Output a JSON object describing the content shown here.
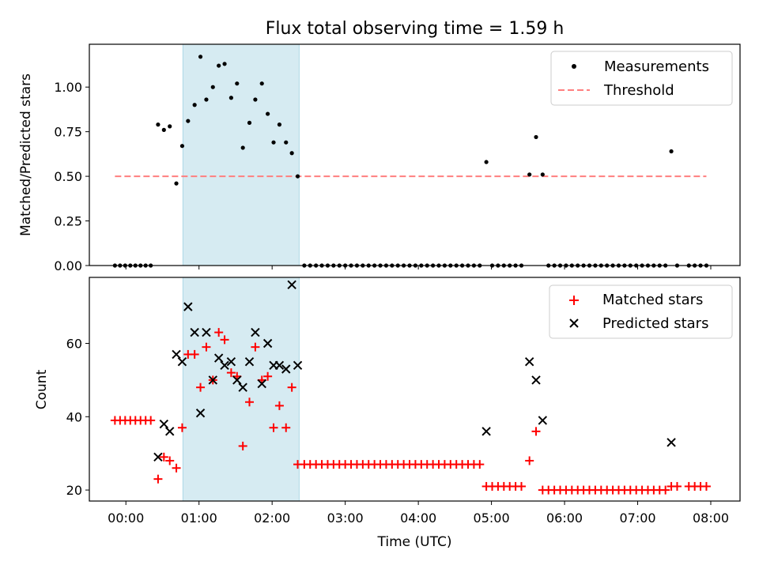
{
  "chart_data": [
    {
      "type": "scatter",
      "panel": "top",
      "title": "Flux total observing time = 1.59 h",
      "xlabel": "",
      "ylabel": "Matched/Predicted stars",
      "xlim": [
        -0.5,
        8.4
      ],
      "ylim": [
        0,
        1.24
      ],
      "yticks": [
        0.0,
        0.25,
        0.5,
        0.75,
        1.0
      ],
      "ytick_labels": [
        "0.00",
        "0.25",
        "0.50",
        "0.75",
        "1.00"
      ],
      "highlight_span": [
        0.78,
        2.37
      ],
      "legend": {
        "position": "top-right",
        "entries": [
          "Measurements",
          "Threshold"
        ]
      },
      "series": [
        {
          "name": "Measurements",
          "marker": "dot",
          "color": "#000000",
          "x": [
            -0.15,
            -0.08,
            -0.01,
            0.06,
            0.13,
            0.2,
            0.27,
            0.34,
            0.44,
            0.52,
            0.6,
            0.69,
            0.77,
            0.85,
            0.94,
            1.02,
            1.1,
            1.19,
            1.27,
            1.35,
            1.44,
            1.52,
            1.6,
            1.69,
            1.77,
            1.86,
            1.94,
            2.02,
            2.1,
            2.19,
            2.27,
            2.35,
            2.44,
            2.52,
            2.6,
            2.68,
            2.76,
            2.84,
            2.92,
            3.0,
            3.08,
            3.16,
            3.24,
            3.32,
            3.4,
            3.48,
            3.56,
            3.64,
            3.72,
            3.8,
            3.88,
            3.96,
            4.04,
            4.12,
            4.2,
            4.28,
            4.36,
            4.44,
            4.52,
            4.6,
            4.68,
            4.76,
            4.84,
            4.93,
            5.01,
            5.09,
            5.17,
            5.25,
            5.33,
            5.41,
            5.52,
            5.61,
            5.7,
            5.78,
            5.86,
            5.94,
            6.02,
            6.1,
            6.18,
            6.26,
            6.34,
            6.42,
            6.5,
            6.58,
            6.66,
            6.74,
            6.82,
            6.9,
            6.98,
            7.06,
            7.14,
            7.22,
            7.3,
            7.38,
            7.46,
            7.54,
            7.7,
            7.78,
            7.86,
            7.94
          ],
          "y": [
            0,
            0,
            0,
            0,
            0,
            0,
            0,
            0,
            0.79,
            0.76,
            0.78,
            0.46,
            0.67,
            0.81,
            0.9,
            1.17,
            0.93,
            1.0,
            1.12,
            1.13,
            0.94,
            1.02,
            0.66,
            0.8,
            0.93,
            1.02,
            0.85,
            0.69,
            0.79,
            0.69,
            0.63,
            0.5,
            0,
            0,
            0,
            0,
            0,
            0,
            0,
            0,
            0,
            0,
            0,
            0,
            0,
            0,
            0,
            0,
            0,
            0,
            0,
            0,
            0,
            0,
            0,
            0,
            0,
            0,
            0,
            0,
            0,
            0,
            0,
            0.58,
            0,
            0,
            0,
            0,
            0,
            0,
            0.51,
            0.72,
            0.51,
            0,
            0,
            0,
            0,
            0,
            0,
            0,
            0,
            0,
            0,
            0,
            0,
            0,
            0,
            0,
            0,
            0,
            0,
            0,
            0,
            0,
            0.64,
            0,
            0,
            0,
            0,
            0
          ]
        },
        {
          "name": "Threshold",
          "marker": "dashed-line",
          "color": "#ff7f7f",
          "x": [
            -0.15,
            7.94
          ],
          "y": [
            0.5,
            0.5
          ]
        }
      ]
    },
    {
      "type": "scatter",
      "panel": "bottom",
      "title": "",
      "xlabel": "Time (UTC)",
      "ylabel": "Count",
      "xlim": [
        -0.5,
        8.4
      ],
      "ylim": [
        17,
        78
      ],
      "xticks": [
        0,
        1,
        2,
        3,
        4,
        5,
        6,
        7,
        8
      ],
      "xtick_labels": [
        "00:00",
        "01:00",
        "02:00",
        "03:00",
        "04:00",
        "05:00",
        "06:00",
        "07:00",
        "08:00"
      ],
      "yticks": [
        20,
        40,
        60
      ],
      "ytick_labels": [
        "20",
        "40",
        "60"
      ],
      "highlight_span": [
        0.78,
        2.37
      ],
      "legend": {
        "position": "top-right",
        "entries": [
          "Matched stars",
          "Predicted stars"
        ]
      },
      "series": [
        {
          "name": "Matched stars",
          "marker": "plus",
          "color": "#ff0000",
          "x": [
            -0.15,
            -0.08,
            -0.01,
            0.06,
            0.13,
            0.2,
            0.27,
            0.34,
            0.44,
            0.52,
            0.6,
            0.69,
            0.77,
            0.85,
            0.94,
            1.02,
            1.1,
            1.19,
            1.27,
            1.35,
            1.44,
            1.52,
            1.6,
            1.69,
            1.77,
            1.86,
            1.94,
            2.02,
            2.1,
            2.19,
            2.27,
            2.35,
            2.44,
            2.52,
            2.6,
            2.68,
            2.76,
            2.84,
            2.92,
            3.0,
            3.08,
            3.16,
            3.24,
            3.32,
            3.4,
            3.48,
            3.56,
            3.64,
            3.72,
            3.8,
            3.88,
            3.96,
            4.04,
            4.12,
            4.2,
            4.28,
            4.36,
            4.44,
            4.52,
            4.6,
            4.68,
            4.76,
            4.84,
            4.93,
            5.01,
            5.09,
            5.17,
            5.25,
            5.33,
            5.41,
            5.52,
            5.61,
            5.7,
            5.78,
            5.86,
            5.94,
            6.02,
            6.1,
            6.18,
            6.26,
            6.34,
            6.42,
            6.5,
            6.58,
            6.66,
            6.74,
            6.82,
            6.9,
            6.98,
            7.06,
            7.14,
            7.22,
            7.3,
            7.38,
            7.46,
            7.54,
            7.7,
            7.78,
            7.86,
            7.94
          ],
          "y": [
            39,
            39,
            39,
            39,
            39,
            39,
            39,
            39,
            23,
            29,
            28,
            26,
            37,
            57,
            57,
            48,
            59,
            50,
            63,
            61,
            52,
            51,
            32,
            44,
            59,
            50,
            51,
            37,
            43,
            37,
            48,
            27,
            27,
            27,
            27,
            27,
            27,
            27,
            27,
            27,
            27,
            27,
            27,
            27,
            27,
            27,
            27,
            27,
            27,
            27,
            27,
            27,
            27,
            27,
            27,
            27,
            27,
            27,
            27,
            27,
            27,
            27,
            27,
            21,
            21,
            21,
            21,
            21,
            21,
            21,
            28,
            36,
            20,
            20,
            20,
            20,
            20,
            20,
            20,
            20,
            20,
            20,
            20,
            20,
            20,
            20,
            20,
            20,
            20,
            20,
            20,
            20,
            20,
            20,
            21,
            21,
            21,
            21,
            21,
            21
          ]
        },
        {
          "name": "Predicted stars",
          "marker": "x",
          "color": "#000000",
          "x": [
            0.44,
            0.52,
            0.6,
            0.69,
            0.77,
            0.85,
            0.94,
            1.02,
            1.1,
            1.19,
            1.27,
            1.35,
            1.44,
            1.52,
            1.6,
            1.69,
            1.77,
            1.86,
            1.94,
            2.02,
            2.1,
            2.19,
            2.27,
            2.35,
            4.93,
            5.52,
            5.61,
            5.7,
            7.46
          ],
          "y": [
            29,
            38,
            36,
            57,
            55,
            70,
            63,
            41,
            63,
            50,
            56,
            54,
            55,
            50,
            48,
            55,
            63,
            49,
            60,
            54,
            54,
            53,
            76,
            54,
            36,
            55,
            50,
            39,
            33
          ]
        }
      ]
    }
  ]
}
